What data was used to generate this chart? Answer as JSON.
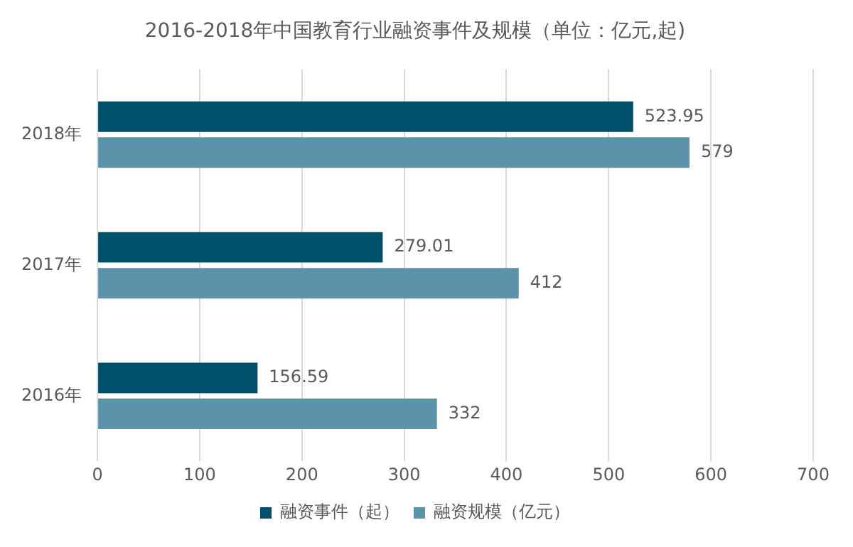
{
  "chart_data": {
    "type": "bar",
    "orientation": "horizontal",
    "title": "2016-2018年中国教育行业融资事件及规模（单位：亿元,起)",
    "categories": [
      "2018年",
      "2017年",
      "2016年"
    ],
    "series": [
      {
        "name": "融资事件（起）",
        "color": "#004f6b",
        "values": [
          523.95,
          279.01,
          156.59
        ]
      },
      {
        "name": "融资规模（亿元）",
        "color": "#5b93aa",
        "values": [
          579,
          412,
          332
        ]
      }
    ],
    "xlim": [
      0,
      700
    ],
    "xticks": [
      0,
      100,
      200,
      300,
      400,
      500,
      600,
      700
    ],
    "grid": "x",
    "legend": "bottom",
    "data_labels": true
  }
}
